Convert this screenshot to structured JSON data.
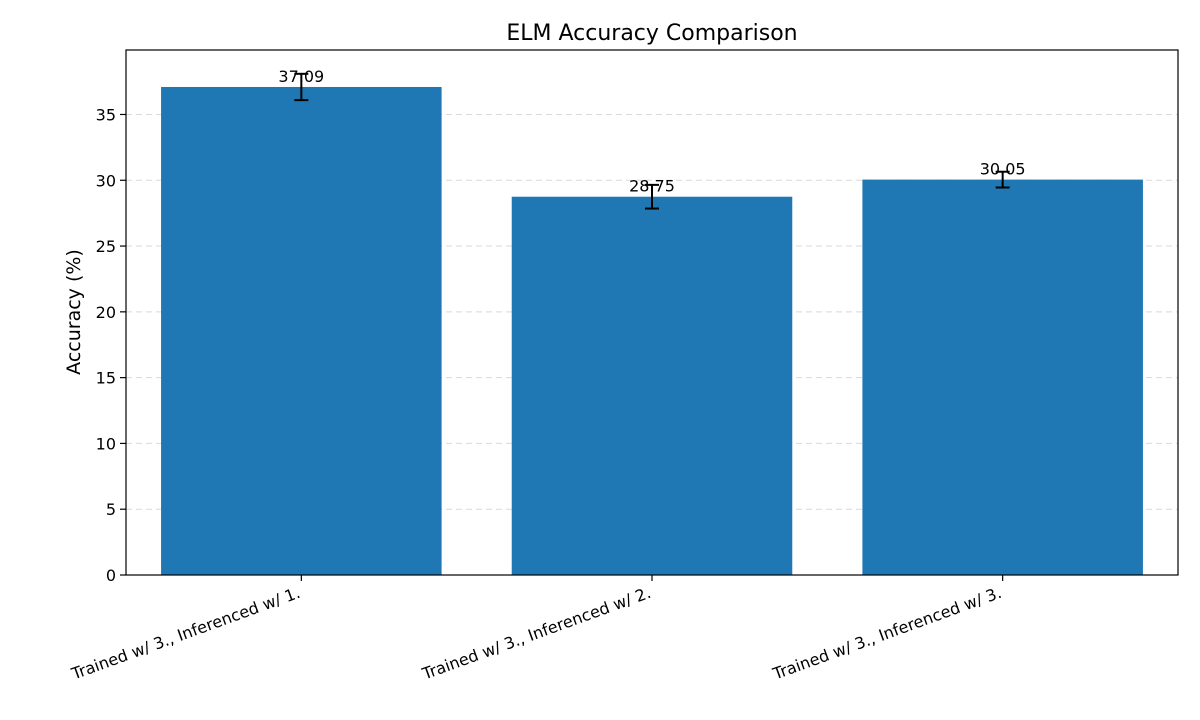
{
  "chart_data": {
    "type": "bar",
    "title": "ELM Accuracy Comparison",
    "xlabel": "",
    "ylabel": "Accuracy (%)",
    "categories": [
      "Trained w/ 3., Inferenced w/ 1.",
      "Trained w/ 3., Inferenced w/ 2.",
      "Trained w/ 3., Inferenced w/ 3."
    ],
    "values": [
      37.09,
      28.75,
      30.05
    ],
    "errors": [
      1.0,
      0.9,
      0.6
    ],
    "data_labels": [
      "37.09",
      "28.75",
      "30.05"
    ],
    "ylim": [
      0,
      39.9
    ],
    "yticks": [
      0,
      5,
      10,
      15,
      20,
      25,
      30,
      35
    ],
    "ytick_labels": [
      "0",
      "5",
      "10",
      "15",
      "20",
      "25",
      "30",
      "35"
    ],
    "grid": "y-dashed",
    "legend": "none",
    "colors": {
      "bar": "#1f77b4",
      "grid": "#d9d9d9",
      "axis": "#000000"
    }
  }
}
